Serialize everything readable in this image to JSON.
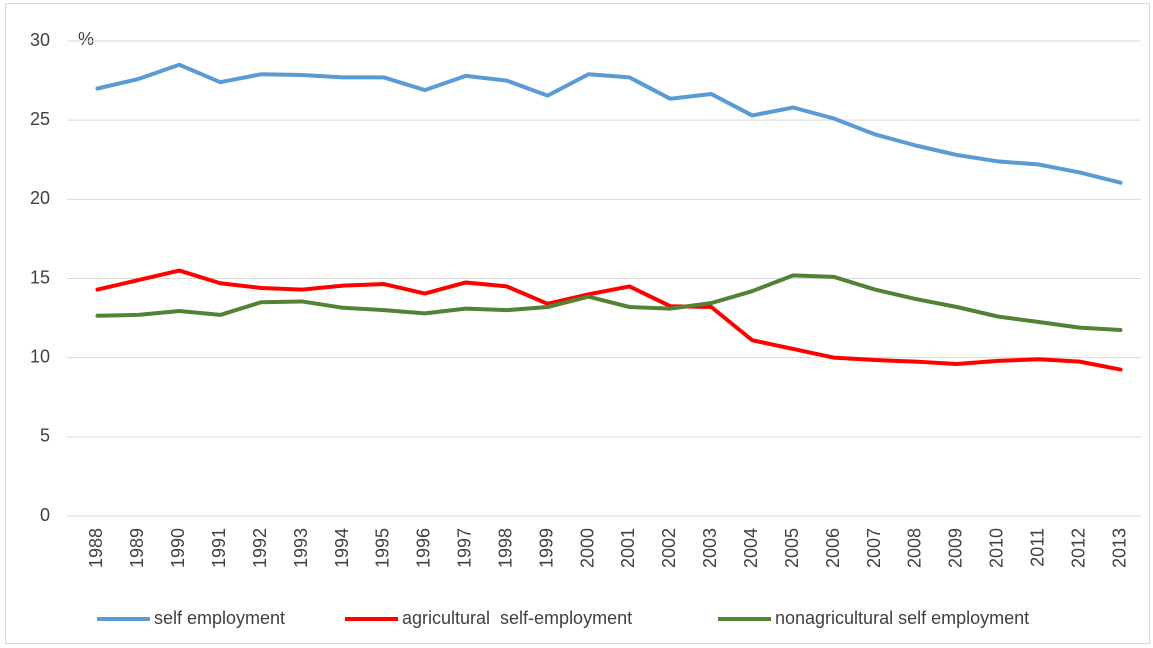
{
  "chart_data": {
    "type": "line",
    "y_label": "%",
    "categories": [
      "1988",
      "1989",
      "1990",
      "1991",
      "1992",
      "1993",
      "1994",
      "1995",
      "1996",
      "1997",
      "1998",
      "1999",
      "2000",
      "2001",
      "2002",
      "2003",
      "2004",
      "2005",
      "2006",
      "2007",
      "2008",
      "2009",
      "2010",
      "2011",
      "2012",
      "2013"
    ],
    "series": [
      {
        "name": "self employment",
        "color": "#5b9bd5",
        "values": [
          27.0,
          27.6,
          28.5,
          27.4,
          27.9,
          27.85,
          27.7,
          27.7,
          26.9,
          27.8,
          27.5,
          26.55,
          27.9,
          27.7,
          26.35,
          26.65,
          25.3,
          25.8,
          25.1,
          24.1,
          23.4,
          22.8,
          22.4,
          22.2,
          21.7,
          21.05
        ]
      },
      {
        "name": "agricultural  self-employment",
        "color": "#ff0000",
        "values": [
          14.3,
          14.9,
          15.5,
          14.7,
          14.4,
          14.3,
          14.55,
          14.65,
          14.05,
          14.75,
          14.5,
          13.4,
          14.0,
          14.5,
          13.25,
          13.2,
          11.1,
          10.55,
          10.0,
          9.85,
          9.75,
          9.6,
          9.8,
          9.9,
          9.75,
          9.25
        ]
      },
      {
        "name": "nonagricultural self employment",
        "color": "#548235",
        "values": [
          12.65,
          12.7,
          12.95,
          12.7,
          13.5,
          13.55,
          13.15,
          13.0,
          12.8,
          13.1,
          13.0,
          13.2,
          13.85,
          13.2,
          13.1,
          13.45,
          14.2,
          15.2,
          15.1,
          14.3,
          13.7,
          13.2,
          12.6,
          12.25,
          11.9,
          11.75
        ]
      }
    ],
    "ylim": [
      0,
      30
    ],
    "yticks": [
      0,
      5,
      10,
      15,
      20,
      25,
      30
    ],
    "grid": true,
    "legend": "bottom"
  }
}
